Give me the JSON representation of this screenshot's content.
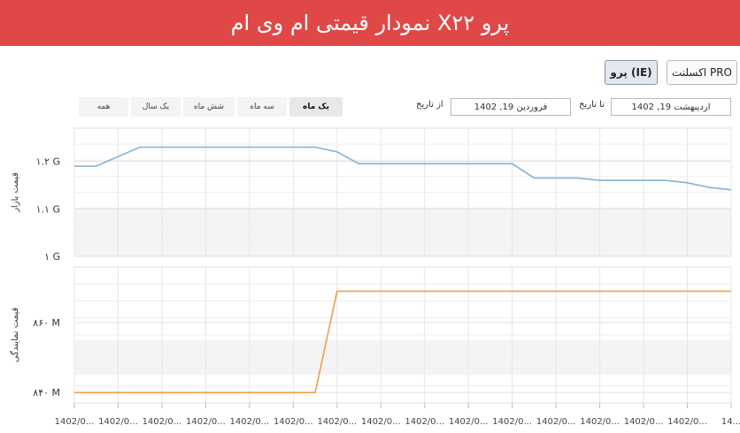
{
  "header": {
    "title": "نمودار قیمتی ام وی ام X۲۲ پرو"
  },
  "trims": [
    {
      "label": "اکسلنت PRO",
      "active": false
    },
    {
      "label": "پرو (IE)",
      "active": true
    }
  ],
  "date_range": {
    "to_label": "تا تاریخ",
    "to_value": "اردیبهشت 19, 1402",
    "from_label": "از تاریخ",
    "from_value": "فروردین 19, 1402"
  },
  "periods": [
    {
      "label": "یک ماه",
      "active": true
    },
    {
      "label": "سه ماه",
      "active": false
    },
    {
      "label": "شش ماه",
      "active": false
    },
    {
      "label": "یک سال",
      "active": false
    },
    {
      "label": "همه",
      "active": false
    }
  ],
  "colors": {
    "header": "#e04848",
    "market_line": "#7fb2d8",
    "dealer_line": "#f0a04b"
  },
  "chart_data": [
    {
      "type": "line",
      "ylabel": "قیمت بازار",
      "ylim": [
        1000000000,
        1270000000
      ],
      "y_ticks": [
        {
          "value": 1000000000,
          "label": "۱ G"
        },
        {
          "value": 1100000000,
          "label": "۱.۱ G"
        },
        {
          "value": 1200000000,
          "label": "۱.۲ G"
        }
      ],
      "x": [
        0,
        1,
        2,
        3,
        4,
        5,
        6,
        7,
        8,
        9,
        10,
        11,
        12,
        13,
        14,
        15,
        16,
        17,
        18,
        19,
        20,
        21,
        22,
        23,
        24,
        25,
        26,
        27,
        28,
        29,
        30
      ],
      "series": [
        {
          "values": [
            1190000000,
            1190000000,
            1210000000,
            1230000000,
            1230000000,
            1230000000,
            1230000000,
            1230000000,
            1230000000,
            1230000000,
            1230000000,
            1230000000,
            1220000000,
            1195000000,
            1195000000,
            1195000000,
            1195000000,
            1195000000,
            1195000000,
            1195000000,
            1195000000,
            1165000000,
            1165000000,
            1165000000,
            1160000000,
            1160000000,
            1160000000,
            1160000000,
            1155000000,
            1145000000,
            1140000000
          ]
        }
      ],
      "x_tick_labels": [
        "1402/0...",
        "1402/0...",
        "1402/0...",
        "1402/0...",
        "1402/0...",
        "1402/0...",
        "1402/0...",
        "1402/0...",
        "1402/0...",
        "1402/0...",
        "1402/0...",
        "1402/0...",
        "1402/0...",
        "1402/0...",
        "1402/0...",
        "14..."
      ],
      "grid": true
    },
    {
      "type": "line",
      "ylabel": "قیمت نمایندگی",
      "ylim": [
        837000000,
        876000000
      ],
      "y_ticks": [
        {
          "value": 840000000,
          "label": "۸۴۰ M"
        },
        {
          "value": 860000000,
          "label": "۸۶۰ M"
        }
      ],
      "x": [
        0,
        1,
        2,
        3,
        4,
        5,
        6,
        7,
        8,
        9,
        10,
        11,
        12,
        13,
        14,
        15,
        16,
        17,
        18,
        19,
        20,
        21,
        22,
        23,
        24,
        25,
        26,
        27,
        28,
        29,
        30
      ],
      "series": [
        {
          "values": [
            840000000,
            840000000,
            840000000,
            840000000,
            840000000,
            840000000,
            840000000,
            840000000,
            840000000,
            840000000,
            840000000,
            840000000,
            869000000,
            869000000,
            869000000,
            869000000,
            869000000,
            869000000,
            869000000,
            869000000,
            869000000,
            869000000,
            869000000,
            869000000,
            869000000,
            869000000,
            869000000,
            869000000,
            869000000,
            869000000,
            869000000
          ]
        }
      ],
      "grid": true
    }
  ]
}
